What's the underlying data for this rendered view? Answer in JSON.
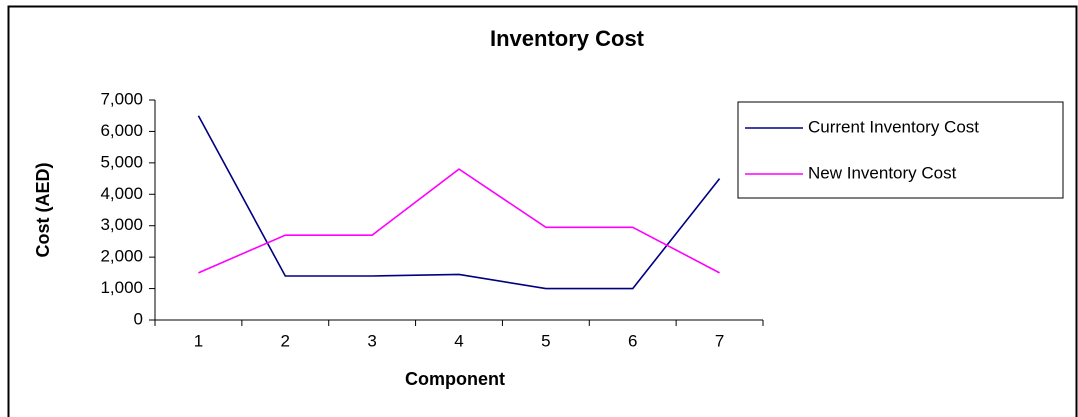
{
  "chart_data": {
    "type": "line",
    "title": "Inventory Cost",
    "x_label": "Component",
    "y_label": "Cost (AED)",
    "categories": [
      "1",
      "2",
      "3",
      "4",
      "5",
      "6",
      "7"
    ],
    "series": [
      {
        "name": "Current Inventory Cost",
        "color": "#000080",
        "values": [
          6500,
          1400,
          1400,
          1450,
          1000,
          1000,
          4500
        ]
      },
      {
        "name": "New Inventory Cost",
        "color": "#ff00ff",
        "values": [
          1500,
          2700,
          2700,
          4800,
          2950,
          2950,
          1500
        ]
      }
    ],
    "ylim": [
      0,
      7000
    ],
    "yticks": [
      0,
      {
        "value": 1000,
        "label": "1,000"
      },
      {
        "value": 2000,
        "label": "2,000"
      },
      {
        "value": 3000,
        "label": "3,000"
      },
      {
        "value": 4000,
        "label": "4,000"
      },
      {
        "value": 5000,
        "label": "5,000"
      },
      {
        "value": 6000,
        "label": "6,000"
      },
      {
        "value": 7000,
        "label": "7,000"
      }
    ],
    "grid": false,
    "legend": "right"
  }
}
